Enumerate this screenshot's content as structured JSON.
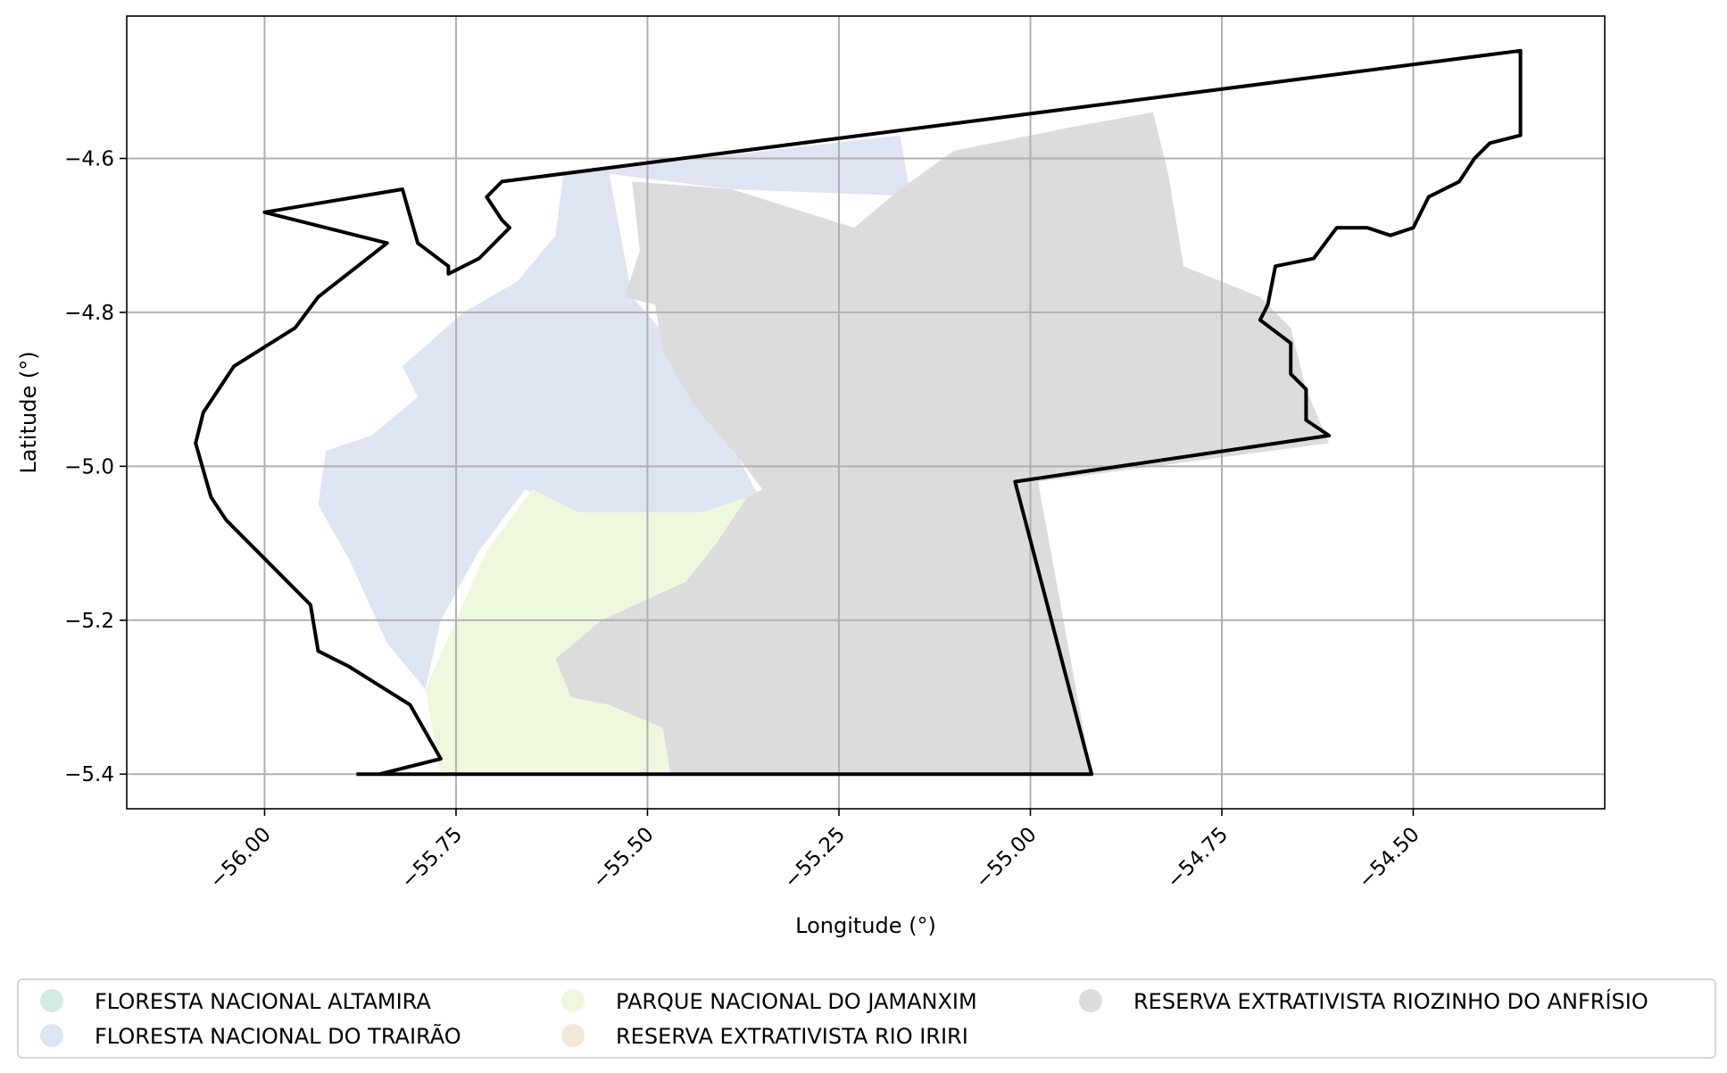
{
  "chart_data": {
    "type": "map",
    "xlabel": "Longitude (°)",
    "ylabel": "Latitude (°)",
    "xlim": [
      -56.18,
      -54.25
    ],
    "ylim": [
      -5.445,
      -4.415
    ],
    "xticks": [
      -56.0,
      -55.75,
      -55.5,
      -55.25,
      -55.0,
      -54.75,
      -54.5
    ],
    "xtick_labels": [
      "−56.00",
      "−55.75",
      "−55.50",
      "−55.25",
      "−55.00",
      "−54.75",
      "−54.50"
    ],
    "yticks": [
      -4.6,
      -4.8,
      -5.0,
      -5.2,
      -5.4
    ],
    "ytick_labels": [
      "−4.6",
      "−4.8",
      "−5.0",
      "−5.2",
      "−5.4"
    ],
    "grid": true,
    "legend_position": "bottom",
    "legend_columns": 3,
    "regions": [
      {
        "name": "FLORESTA NACIONAL ALTAMIRA",
        "color": "#d1ecdf",
        "polygon": []
      },
      {
        "name": "FLORESTA NACIONAL DO TRAIRÃO",
        "color": "#dfe4f3",
        "polygon": [
          [
            -55.61,
            -4.62
          ],
          [
            -55.17,
            -4.57
          ],
          [
            -55.16,
            -4.63
          ],
          [
            -55.12,
            -4.65
          ],
          [
            -55.39,
            -4.64
          ],
          [
            -55.55,
            -4.62
          ],
          [
            -55.52,
            -4.78
          ],
          [
            -55.44,
            -4.87
          ],
          [
            -55.4,
            -4.95
          ],
          [
            -55.36,
            -5.03
          ],
          [
            -55.35,
            -5.04
          ],
          [
            -55.43,
            -5.06
          ],
          [
            -55.53,
            -5.06
          ],
          [
            -55.59,
            -5.06
          ],
          [
            -55.66,
            -5.03
          ],
          [
            -55.72,
            -5.11
          ],
          [
            -55.77,
            -5.2
          ],
          [
            -55.79,
            -5.29
          ],
          [
            -55.84,
            -5.23
          ],
          [
            -55.89,
            -5.12
          ],
          [
            -55.93,
            -5.05
          ],
          [
            -55.92,
            -4.98
          ],
          [
            -55.86,
            -4.96
          ],
          [
            -55.8,
            -4.91
          ],
          [
            -55.82,
            -4.87
          ],
          [
            -55.74,
            -4.8
          ],
          [
            -55.67,
            -4.76
          ],
          [
            -55.62,
            -4.7
          ]
        ]
      },
      {
        "name": "PARQUE NACIONAL DO JAMANXIM",
        "color": "#eef8dd",
        "polygon": [
          [
            -55.65,
            -5.03
          ],
          [
            -55.59,
            -5.06
          ],
          [
            -55.53,
            -5.06
          ],
          [
            -55.43,
            -5.06
          ],
          [
            -55.37,
            -5.04
          ],
          [
            -55.4,
            -5.11
          ],
          [
            -55.45,
            -5.15
          ],
          [
            -55.55,
            -5.2
          ],
          [
            -55.58,
            -5.26
          ],
          [
            -55.55,
            -5.3
          ],
          [
            -55.48,
            -5.34
          ],
          [
            -55.47,
            -5.4
          ],
          [
            -55.77,
            -5.4
          ],
          [
            -55.79,
            -5.29
          ],
          [
            -55.75,
            -5.2
          ],
          [
            -55.71,
            -5.11
          ]
        ]
      },
      {
        "name": "RESERVA EXTRATIVISTA RIO IRIRI",
        "color": "#f3e7d6",
        "polygon": []
      },
      {
        "name": "RESERVA EXTRATIVISTA RIOZINHO DO ANFRÍSIO",
        "color": "#dcdcdc",
        "polygon": [
          [
            -55.52,
            -4.63
          ],
          [
            -55.39,
            -4.64
          ],
          [
            -55.23,
            -4.69
          ],
          [
            -55.17,
            -4.64
          ],
          [
            -55.1,
            -4.59
          ],
          [
            -54.95,
            -4.56
          ],
          [
            -54.84,
            -4.54
          ],
          [
            -54.82,
            -4.62
          ],
          [
            -54.8,
            -4.74
          ],
          [
            -54.7,
            -4.78
          ],
          [
            -54.66,
            -4.82
          ],
          [
            -54.64,
            -4.9
          ],
          [
            -54.61,
            -4.97
          ],
          [
            -54.99,
            -5.02
          ],
          [
            -54.92,
            -5.4
          ],
          [
            -55.47,
            -5.4
          ],
          [
            -55.48,
            -5.34
          ],
          [
            -55.55,
            -5.31
          ],
          [
            -55.6,
            -5.3
          ],
          [
            -55.62,
            -5.25
          ],
          [
            -55.56,
            -5.2
          ],
          [
            -55.45,
            -5.15
          ],
          [
            -55.41,
            -5.1
          ],
          [
            -55.37,
            -5.04
          ],
          [
            -55.35,
            -5.03
          ],
          [
            -55.38,
            -4.99
          ],
          [
            -55.44,
            -4.92
          ],
          [
            -55.48,
            -4.85
          ],
          [
            -55.49,
            -4.79
          ],
          [
            -55.53,
            -4.78
          ],
          [
            -55.51,
            -4.72
          ]
        ]
      }
    ],
    "boundary": [
      [
        -55.88,
        -5.4
      ],
      [
        -54.92,
        -5.4
      ],
      [
        -55.02,
        -5.02
      ],
      [
        -54.61,
        -4.96
      ],
      [
        -54.61,
        -4.96
      ],
      [
        -54.64,
        -4.94
      ],
      [
        -54.64,
        -4.9
      ],
      [
        -54.66,
        -4.88
      ],
      [
        -54.66,
        -4.84
      ],
      [
        -54.7,
        -4.81
      ],
      [
        -54.69,
        -4.79
      ],
      [
        -54.68,
        -4.74
      ],
      [
        -54.63,
        -4.73
      ],
      [
        -54.6,
        -4.69
      ],
      [
        -54.56,
        -4.69
      ],
      [
        -54.53,
        -4.7
      ],
      [
        -54.5,
        -4.69
      ],
      [
        -54.48,
        -4.65
      ],
      [
        -54.44,
        -4.63
      ],
      [
        -54.42,
        -4.6
      ],
      [
        -54.4,
        -4.58
      ],
      [
        -54.36,
        -4.57
      ],
      [
        -54.36,
        -4.46
      ],
      [
        -55.69,
        -4.63
      ],
      [
        -55.71,
        -4.65
      ],
      [
        -55.69,
        -4.68
      ],
      [
        -55.68,
        -4.69
      ],
      [
        -55.72,
        -4.73
      ],
      [
        -55.76,
        -4.75
      ],
      [
        -55.76,
        -4.74
      ],
      [
        -55.8,
        -4.71
      ],
      [
        -55.82,
        -4.64
      ],
      [
        -56.0,
        -4.67
      ],
      [
        -55.84,
        -4.71
      ],
      [
        -55.93,
        -4.78
      ],
      [
        -55.96,
        -4.82
      ],
      [
        -56.04,
        -4.87
      ],
      [
        -56.06,
        -4.9
      ],
      [
        -56.08,
        -4.93
      ],
      [
        -56.09,
        -4.97
      ],
      [
        -56.07,
        -5.04
      ],
      [
        -56.05,
        -5.07
      ],
      [
        -56.01,
        -5.11
      ],
      [
        -55.97,
        -5.15
      ],
      [
        -55.94,
        -5.18
      ],
      [
        -55.93,
        -5.24
      ],
      [
        -55.89,
        -5.26
      ],
      [
        -55.81,
        -5.31
      ],
      [
        -55.77,
        -5.38
      ],
      [
        -55.85,
        -5.4
      ],
      [
        -55.88,
        -5.4
      ]
    ]
  }
}
